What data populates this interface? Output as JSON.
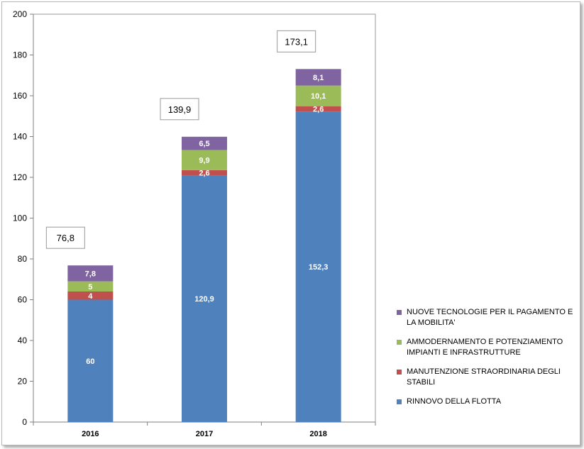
{
  "chart_data": {
    "type": "bar",
    "stacked": true,
    "categories": [
      "2016",
      "2017",
      "2018"
    ],
    "ylim": [
      0,
      200
    ],
    "yticks": [
      0,
      20,
      40,
      60,
      80,
      100,
      120,
      140,
      160,
      180,
      200
    ],
    "grid": false,
    "legend_position": "right-bottom",
    "series": [
      {
        "name": "RINNOVO DELLA FLOTTA",
        "color": "#4f81bd",
        "values": [
          60,
          120.9,
          152.3
        ],
        "labels": [
          "60",
          "120,9",
          "152,3"
        ]
      },
      {
        "name": "MANUTENZIONE STRAORDINARIA DEGLI STABILI",
        "color": "#c0504d",
        "values": [
          4,
          2.6,
          2.6
        ],
        "labels": [
          "4",
          "2,6",
          "2,6"
        ]
      },
      {
        "name": "AMMODERNAMENTO E POTENZIAMENTO IMPIANTI E INFRASTRUTTURE",
        "color": "#9bbb59",
        "values": [
          5,
          9.9,
          10.1
        ],
        "labels": [
          "5",
          "9,9",
          "10,1"
        ]
      },
      {
        "name": "NUOVE TECNOLOGIE PER IL PAGAMENTO E LA MOBILITA'",
        "color": "#8064a2",
        "values": [
          7.8,
          6.5,
          8.1
        ],
        "labels": [
          "7,8",
          "6,5",
          "8,1"
        ]
      }
    ],
    "totals": [
      "76,8",
      "139,9",
      "173,1"
    ]
  }
}
